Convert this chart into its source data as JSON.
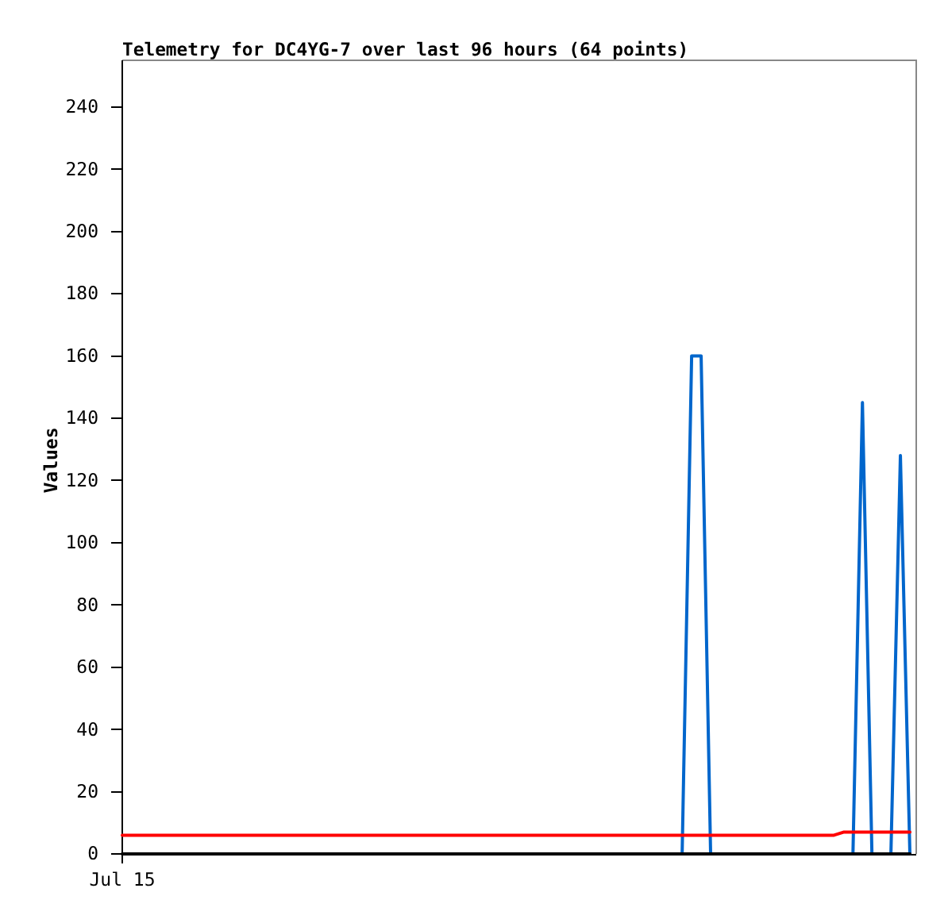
{
  "chart_data": {
    "type": "line",
    "title": "Telemetry for DC4YG-7 over last 96 hours (64 points)",
    "ylabel": "Values",
    "categories": [
      "Jul 15",
      null,
      null,
      null,
      null,
      null,
      null,
      null,
      null,
      null,
      null,
      null,
      null,
      null,
      null,
      null,
      null,
      null,
      null,
      null,
      null,
      null,
      null,
      null,
      null,
      null,
      null,
      null,
      null,
      null,
      null,
      null,
      null,
      null,
      null,
      null,
      null,
      null,
      null,
      null,
      null,
      null,
      null,
      null,
      null,
      null,
      null,
      null,
      null,
      null,
      null,
      null,
      null,
      null,
      null,
      null,
      null,
      null,
      null,
      null,
      null,
      null,
      null,
      null,
      null,
      null,
      null,
      null,
      null,
      null,
      null,
      null,
      null,
      null,
      null,
      null,
      null,
      null,
      null,
      null,
      null,
      null,
      null,
      null
    ],
    "ylim": [
      0,
      255
    ],
    "yticks": [
      0,
      20,
      40,
      60,
      80,
      100,
      120,
      140,
      160,
      180,
      200,
      220,
      240
    ],
    "series": [
      {
        "color": "#0066cc",
        "values": [
          null,
          null,
          null,
          null,
          null,
          null,
          null,
          null,
          null,
          null,
          null,
          null,
          null,
          null,
          null,
          null,
          null,
          null,
          null,
          null,
          null,
          null,
          null,
          null,
          null,
          null,
          null,
          null,
          null,
          null,
          null,
          null,
          null,
          null,
          null,
          null,
          null,
          null,
          null,
          null,
          null,
          null,
          null,
          null,
          null,
          null,
          null,
          null,
          null,
          null,
          null,
          null,
          null,
          null,
          null,
          null,
          null,
          null,
          null,
          0,
          160,
          160,
          0,
          null,
          null,
          null,
          null,
          null,
          null,
          null,
          null,
          null,
          null,
          null,
          null,
          null,
          null,
          0,
          145,
          0,
          null,
          0,
          128,
          0
        ]
      },
      {
        "color": "#ff0000",
        "values": [
          6,
          6,
          6,
          6,
          6,
          6,
          6,
          6,
          6,
          6,
          6,
          6,
          6,
          6,
          6,
          6,
          6,
          6,
          6,
          6,
          6,
          6,
          6,
          6,
          6,
          6,
          6,
          6,
          6,
          6,
          6,
          6,
          6,
          6,
          6,
          6,
          6,
          6,
          6,
          6,
          6,
          6,
          6,
          6,
          6,
          6,
          6,
          6,
          6,
          6,
          6,
          6,
          6,
          6,
          6,
          6,
          6,
          6,
          6,
          6,
          6,
          6,
          6,
          6,
          6,
          6,
          6,
          6,
          6,
          6,
          6,
          6,
          6,
          6,
          6,
          6,
          7,
          7,
          7,
          7,
          7,
          7,
          7,
          7
        ]
      },
      {
        "color": "#000000",
        "values": [
          0,
          0,
          0,
          0,
          0,
          0,
          0,
          0,
          0,
          0,
          0,
          0,
          0,
          0,
          0,
          0,
          0,
          0,
          0,
          0,
          0,
          0,
          0,
          0,
          0,
          0,
          0,
          0,
          0,
          0,
          0,
          0,
          0,
          0,
          0,
          0,
          0,
          0,
          0,
          0,
          0,
          0,
          0,
          0,
          0,
          0,
          0,
          0,
          0,
          0,
          0,
          0,
          0,
          0,
          0,
          0,
          0,
          0,
          0,
          0,
          0,
          0,
          0,
          0,
          0,
          0,
          0,
          0,
          0,
          0,
          0,
          0,
          0,
          0,
          0,
          0,
          0,
          0,
          0,
          0,
          0,
          0,
          0,
          0
        ]
      }
    ]
  }
}
